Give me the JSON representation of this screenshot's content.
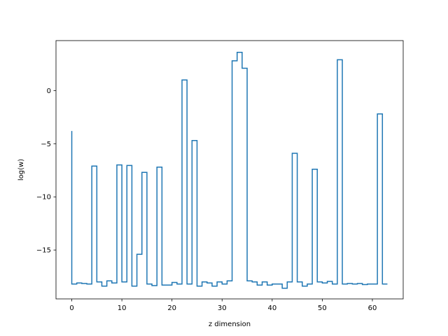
{
  "chart_data": {
    "type": "line",
    "drawstyle": "steps-pre",
    "xlabel": "z dimension",
    "ylabel": "log(w)",
    "xlim": [
      -3.15,
      66.15
    ],
    "ylim": [
      -19.6,
      4.7
    ],
    "xticks": [
      0,
      10,
      20,
      30,
      40,
      50,
      60
    ],
    "yticks": [
      -15,
      -10,
      -5,
      0
    ],
    "xtick_labels": [
      "0",
      "10",
      "20",
      "30",
      "40",
      "50",
      "60"
    ],
    "ytick_labels": [
      "−15",
      "−10",
      "−5",
      "0"
    ],
    "grid": false,
    "legend": "none",
    "color": "#1f77b4",
    "series": [
      {
        "x": [
          0,
          1,
          2,
          3,
          4,
          5,
          6,
          7,
          8,
          9,
          10,
          11,
          12,
          13,
          14,
          15,
          16,
          17,
          18,
          19,
          20,
          21,
          22,
          23,
          24,
          25,
          26,
          27,
          28,
          29,
          30,
          31,
          32,
          33,
          34,
          35,
          36,
          37,
          38,
          39,
          40,
          41,
          42,
          43,
          44,
          45,
          46,
          47,
          48,
          49,
          50,
          51,
          52,
          53,
          54,
          55,
          56,
          57,
          58,
          59,
          60,
          61,
          62,
          63
        ],
        "values": [
          -3.8,
          -18.2,
          -18.1,
          -18.15,
          -18.2,
          -7.1,
          -18.0,
          -18.4,
          -17.9,
          -18.1,
          -7.0,
          -18.0,
          -7.05,
          -18.4,
          -15.4,
          -7.7,
          -18.2,
          -18.35,
          -7.2,
          -18.3,
          -18.3,
          -18.05,
          -18.2,
          1.0,
          -18.2,
          -4.7,
          -18.4,
          -18.0,
          -18.1,
          -18.4,
          -18.0,
          -18.2,
          -17.9,
          2.8,
          3.6,
          2.1,
          -17.9,
          -18.0,
          -18.3,
          -18.0,
          -18.3,
          -18.2,
          -18.2,
          -18.6,
          -18.0,
          -5.9,
          -18.0,
          -18.4,
          -18.2,
          -7.4,
          -18.0,
          -18.1,
          -17.95,
          -18.2,
          2.9,
          -18.2,
          -18.15,
          -18.2,
          -18.15,
          -18.25,
          -18.2,
          -18.2,
          -2.2,
          -18.2
        ]
      }
    ]
  }
}
